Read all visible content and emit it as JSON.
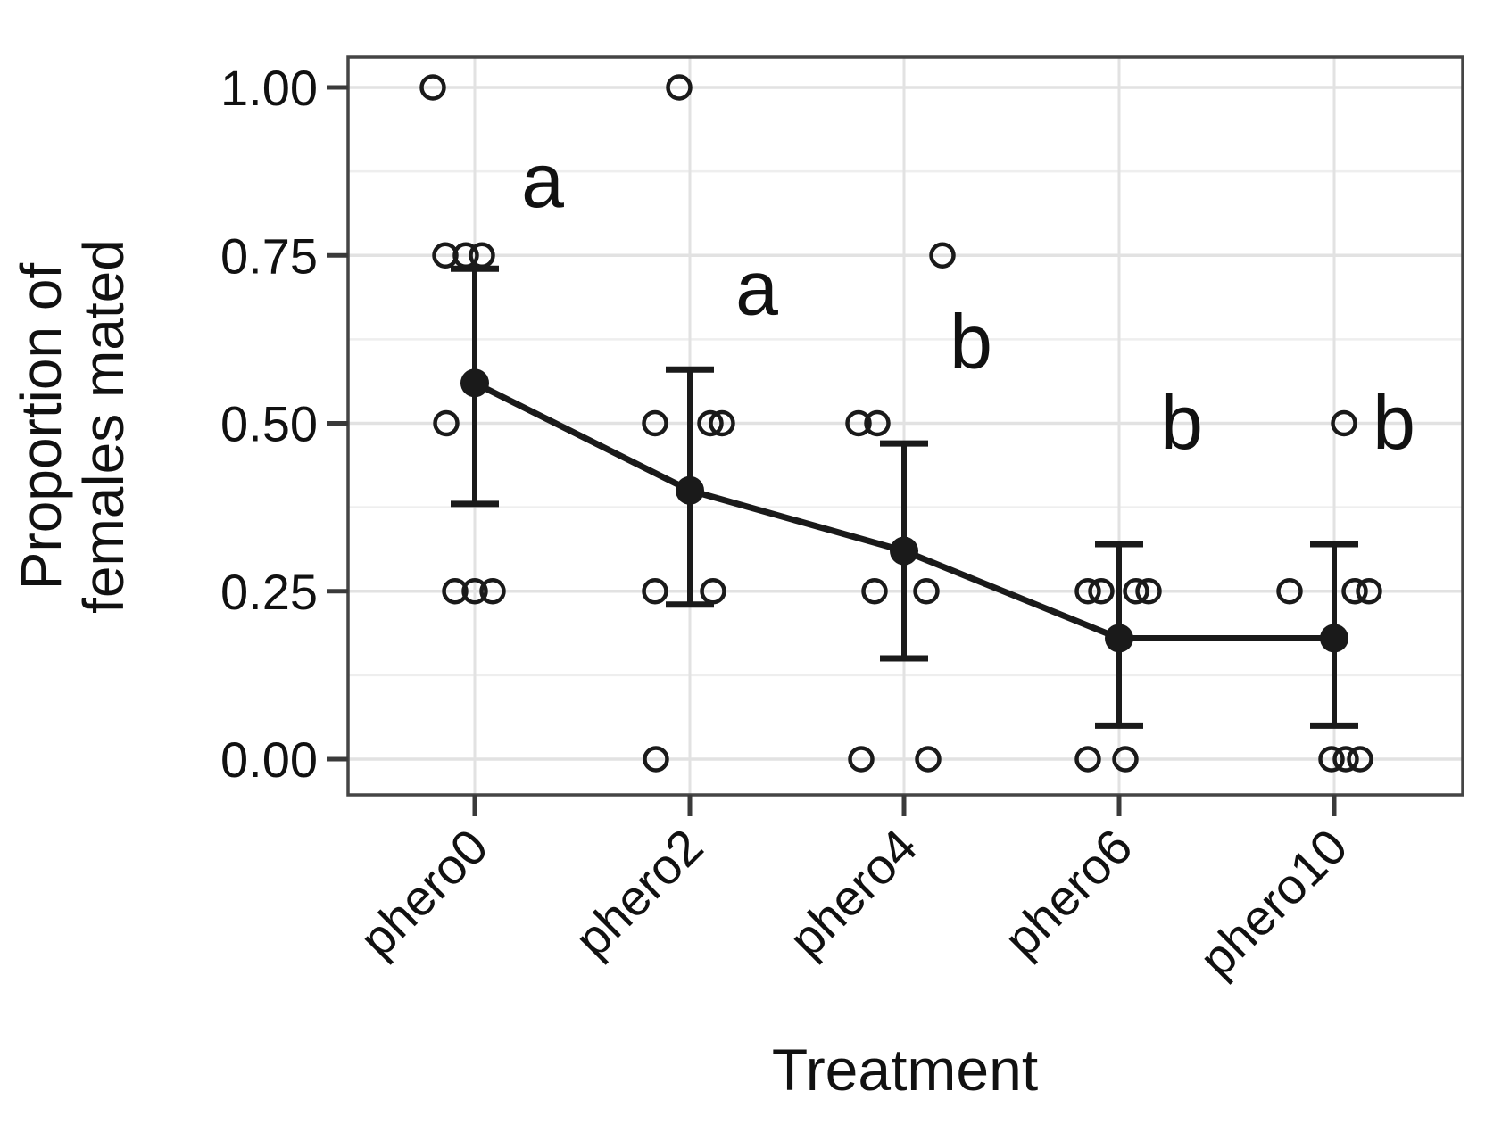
{
  "chart_data": {
    "type": "scatter",
    "title": "",
    "xlabel": "Treatment",
    "ylabel_lines": [
      "Proportion of",
      "females mated"
    ],
    "categories": [
      "phero0",
      "phero2",
      "phero4",
      "phero6",
      "phero10"
    ],
    "y_axis": {
      "tick_values": [
        1.0,
        0.75,
        0.5,
        0.25,
        0.0
      ],
      "tick_labels": [
        "1.00",
        "0.75",
        "0.50",
        "0.25",
        "0.00"
      ],
      "minor_tick_values": [
        0.875,
        0.625,
        0.375,
        0.125
      ],
      "range": [
        -0.053,
        1.045
      ]
    },
    "series": [
      {
        "name": "mean proportion mated with error bars",
        "type": "point-line-errorbar",
        "means": [
          0.56,
          0.4,
          0.31,
          0.18,
          0.18
        ],
        "ci_low": [
          0.38,
          0.23,
          0.15,
          0.05,
          0.05
        ],
        "ci_high": [
          0.73,
          0.58,
          0.47,
          0.32,
          0.32
        ]
      }
    ],
    "raw_points": {
      "phero0": [
        {
          "v": 1.0,
          "dx": -47
        },
        {
          "v": 0.75,
          "dx": -33
        },
        {
          "v": 0.75,
          "dx": -10
        },
        {
          "v": 0.75,
          "dx": 8
        },
        {
          "v": 0.5,
          "dx": -32
        },
        {
          "v": 0.25,
          "dx": -22
        },
        {
          "v": 0.25,
          "dx": 0
        },
        {
          "v": 0.25,
          "dx": 20
        }
      ],
      "phero2": [
        {
          "v": 1.0,
          "dx": -12
        },
        {
          "v": 0.5,
          "dx": -39
        },
        {
          "v": 0.5,
          "dx": 23
        },
        {
          "v": 0.5,
          "dx": 36
        },
        {
          "v": 0.25,
          "dx": -39
        },
        {
          "v": 0.25,
          "dx": 26
        },
        {
          "v": 0.0,
          "dx": -38
        }
      ],
      "phero4": [
        {
          "v": 0.75,
          "dx": 43
        },
        {
          "v": 0.5,
          "dx": -51
        },
        {
          "v": 0.5,
          "dx": -30
        },
        {
          "v": 0.25,
          "dx": -33
        },
        {
          "v": 0.25,
          "dx": 25
        },
        {
          "v": 0.0,
          "dx": -48
        },
        {
          "v": 0.0,
          "dx": 27
        }
      ],
      "phero6": [
        {
          "v": 0.25,
          "dx": -35
        },
        {
          "v": 0.25,
          "dx": -20
        },
        {
          "v": 0.25,
          "dx": 19
        },
        {
          "v": 0.25,
          "dx": 33
        },
        {
          "v": 0.0,
          "dx": -35
        },
        {
          "v": 0.0,
          "dx": 7
        }
      ],
      "phero10": [
        {
          "v": 0.5,
          "dx": 11
        },
        {
          "v": 0.25,
          "dx": -50
        },
        {
          "v": 0.25,
          "dx": 23
        },
        {
          "v": 0.25,
          "dx": 39
        },
        {
          "v": 0.0,
          "dx": -3
        },
        {
          "v": 0.0,
          "dx": 13
        },
        {
          "v": 0.0,
          "dx": 29
        }
      ]
    },
    "sig_letters": [
      {
        "label": "a",
        "category": "phero0",
        "dx": 76,
        "v": 0.86
      },
      {
        "label": "a",
        "category": "phero2",
        "dx": 75,
        "v": 0.7
      },
      {
        "label": "b",
        "category": "phero4",
        "dx": 75,
        "v": 0.62
      },
      {
        "label": "b",
        "category": "phero6",
        "dx": 70,
        "v": 0.5
      },
      {
        "label": "b",
        "category": "phero10",
        "dx": 67,
        "v": 0.5
      }
    ],
    "grid": {
      "major": true,
      "minor": true,
      "major_color": "#e2e2e2",
      "minor_color": "#eeeeee"
    },
    "colors": {
      "data": "#1a1a1a",
      "panel_border": "#454545",
      "tick": "#3a3a3a",
      "text": "#111111"
    }
  }
}
